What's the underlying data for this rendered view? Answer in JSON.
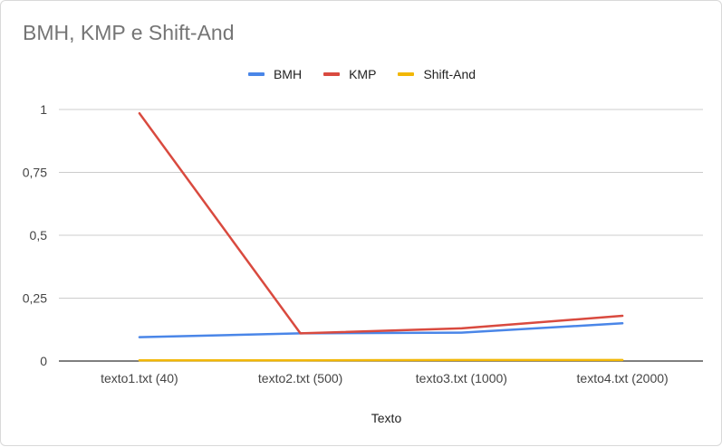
{
  "chart_data": {
    "type": "line",
    "title": "BMH, KMP e Shift-And",
    "xlabel": "Texto",
    "ylabel": "",
    "categories": [
      "texto1.txt (40)",
      "texto2.txt (500)",
      "texto3.txt (1000)",
      "texto4.txt (2000)"
    ],
    "ylim": [
      0,
      1
    ],
    "yticks": [
      "0",
      "0,25",
      "0,5",
      "0,75",
      "1"
    ],
    "ytick_values": [
      0,
      0.25,
      0.5,
      0.75,
      1
    ],
    "grid": true,
    "legend_position": "top-center",
    "series": [
      {
        "name": "BMH",
        "color": "#4a86e8",
        "values": [
          0.095,
          0.11,
          0.113,
          0.15
        ]
      },
      {
        "name": "KMP",
        "color": "#d94a3f",
        "values": [
          0.985,
          0.11,
          0.13,
          0.18
        ]
      },
      {
        "name": "Shift-And",
        "color": "#f2b705",
        "values": [
          0.003,
          0.003,
          0.004,
          0.004
        ]
      }
    ]
  }
}
